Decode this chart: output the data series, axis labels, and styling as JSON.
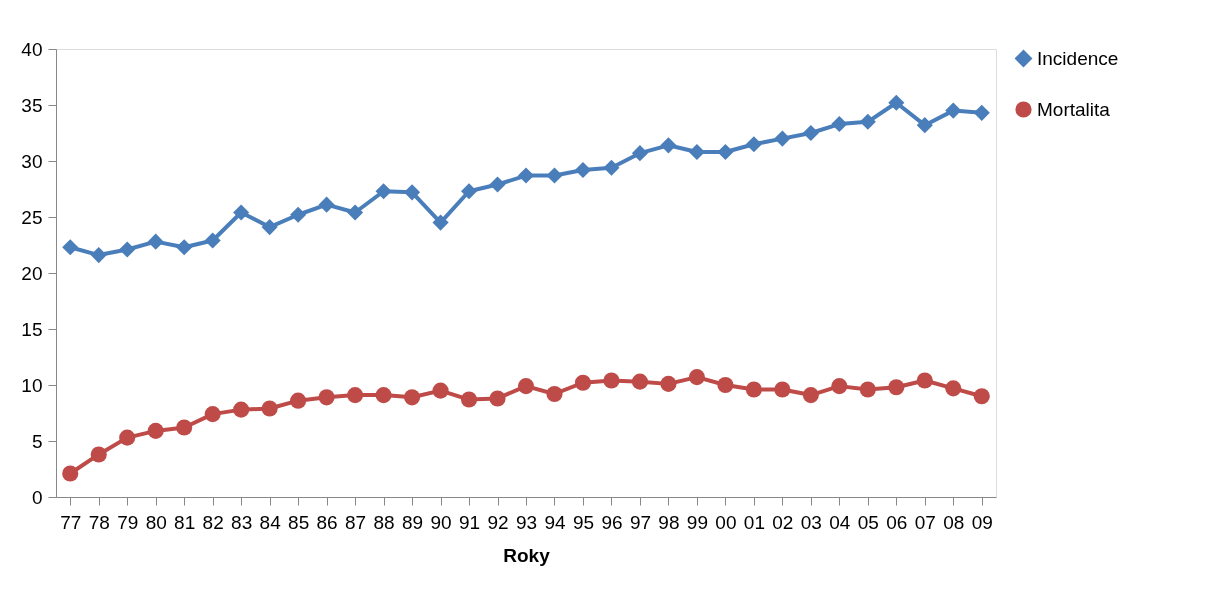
{
  "chart_data": {
    "type": "line",
    "xlabel": "Roky",
    "categories": [
      "77",
      "78",
      "79",
      "80",
      "81",
      "82",
      "83",
      "84",
      "85",
      "86",
      "87",
      "88",
      "89",
      "90",
      "91",
      "92",
      "93",
      "94",
      "95",
      "96",
      "97",
      "98",
      "99",
      "00",
      "01",
      "02",
      "03",
      "04",
      "05",
      "06",
      "07",
      "08",
      "09"
    ],
    "series": [
      {
        "name": "Incidence",
        "color": "#4a7ebb",
        "marker": "diamond",
        "values": [
          22.3,
          21.6,
          22.1,
          22.8,
          22.3,
          22.9,
          25.4,
          24.1,
          25.2,
          26.1,
          25.4,
          27.3,
          27.2,
          24.5,
          27.3,
          27.9,
          28.7,
          28.7,
          29.2,
          29.4,
          30.7,
          31.4,
          30.8,
          30.8,
          31.5,
          32.0,
          32.5,
          33.3,
          33.5,
          35.2,
          33.2,
          34.5,
          34.3
        ]
      },
      {
        "name": "Mortalita",
        "color": "#be4b48",
        "marker": "circle",
        "values": [
          2.1,
          3.8,
          5.3,
          5.9,
          6.2,
          7.4,
          7.8,
          7.9,
          8.6,
          8.9,
          9.1,
          9.1,
          8.9,
          9.5,
          8.7,
          8.8,
          9.9,
          9.2,
          10.2,
          10.4,
          10.3,
          10.1,
          10.7,
          10.0,
          9.6,
          9.6,
          9.1,
          9.9,
          9.6,
          9.8,
          10.4,
          9.7,
          9.0
        ]
      }
    ],
    "ylim": [
      0,
      40
    ],
    "yticks": [
      0,
      5,
      10,
      15,
      20,
      25,
      30,
      35,
      40
    ],
    "grid": false,
    "legend": "right",
    "line_style": "solid"
  }
}
